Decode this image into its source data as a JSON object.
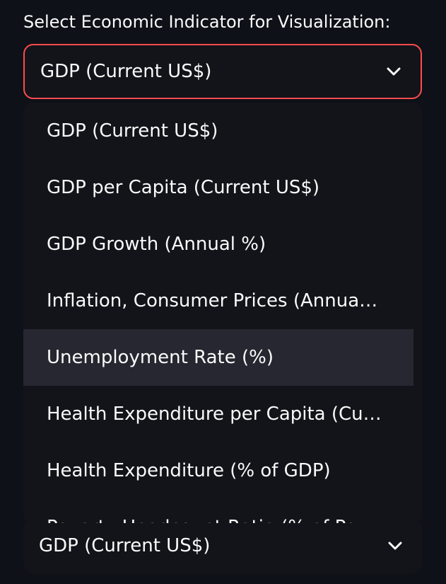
{
  "label": "Select Economic Indicator for Visualization:",
  "primary_select": {
    "value": "GDP (Current US$)",
    "chevron_icon": "chevron-down-icon"
  },
  "dropdown": {
    "options": [
      "GDP (Current US$)",
      "GDP per Capita (Current US$)",
      "GDP Growth (Annual %)",
      "Inflation, Consumer Prices (Annua…",
      "Unemployment Rate (%)",
      "Health Expenditure per Capita (Cu…",
      "Health Expenditure (% of GDP)",
      "Poverty Headcount Ratio (% of Po…"
    ],
    "hovered_option": "Unemployment Rate (%)"
  },
  "secondary_select": {
    "value": "GDP (Current US$)",
    "chevron_icon": "chevron-down-icon"
  },
  "colors": {
    "background": "#0e1117",
    "focus_border": "#ff4b4b",
    "hover_bg": "#262730",
    "text": "#fafafa"
  }
}
